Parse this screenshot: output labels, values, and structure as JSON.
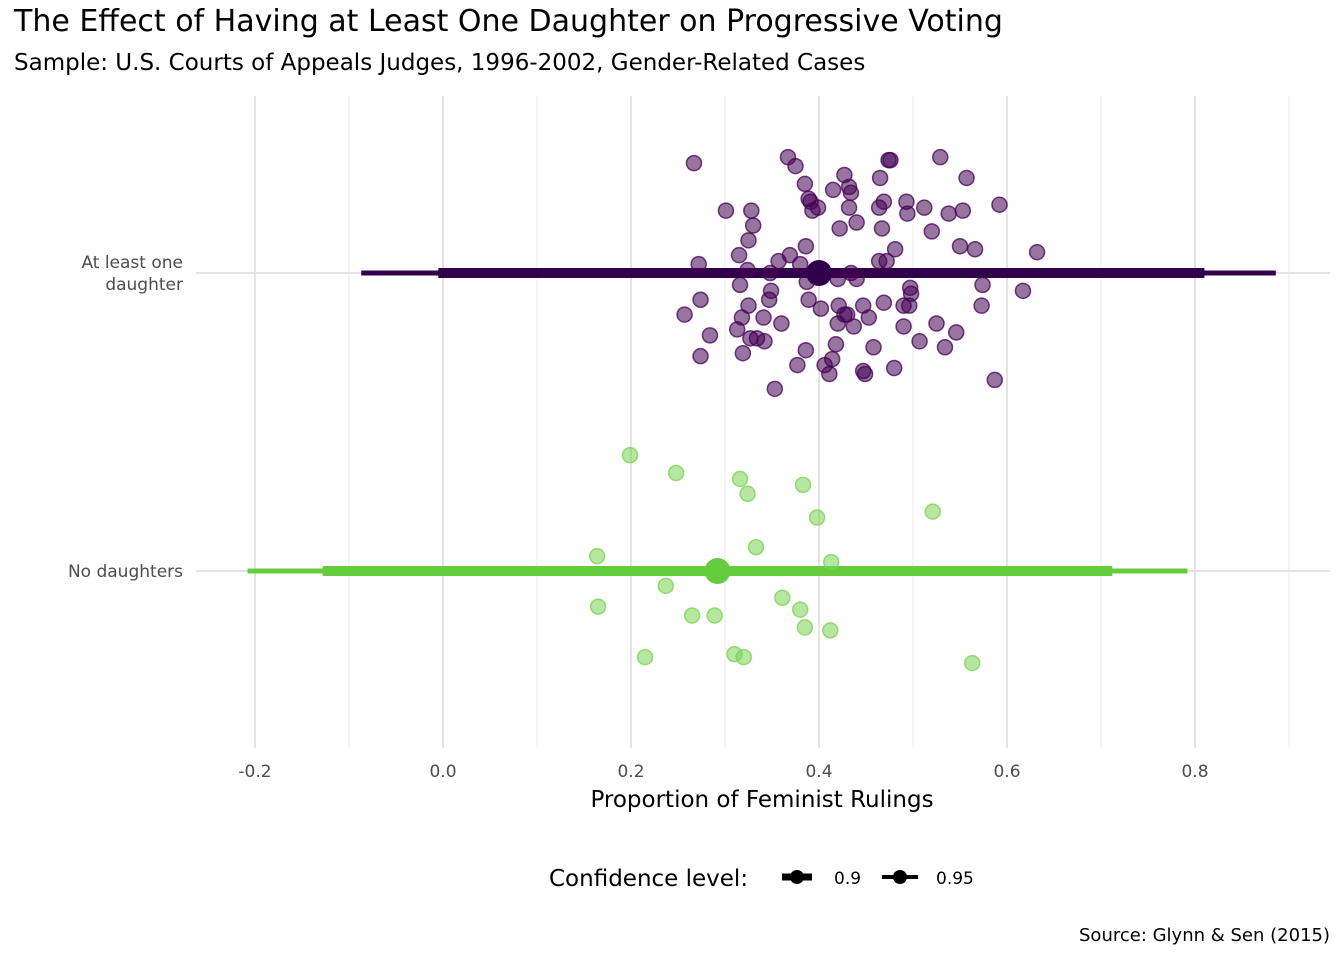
{
  "chart_data": {
    "type": "scatter",
    "title": "The Effect of Having at Least One Daughter on Progressive Voting",
    "subtitle": "Sample: U.S. Courts of Appeals Judges, 1996-2002, Gender-Related Cases",
    "xlabel": "Proportion of Feminist Rulings",
    "ylabel": "",
    "caption": "Source: Glynn & Sen (2015)",
    "xlim": [
      -0.25,
      0.94
    ],
    "x_ticks": [
      -0.2,
      0.0,
      0.2,
      0.4,
      0.6,
      0.8
    ],
    "x_tick_labels": [
      "-0.2",
      "0.0",
      "0.2",
      "0.4",
      "0.6",
      "0.8"
    ],
    "grid": true,
    "legend": {
      "title": "Confidence level:",
      "placement": "bottom",
      "entries": [
        "0.9",
        "0.95"
      ]
    },
    "categories": [
      "At least one daughter",
      "No daughters"
    ],
    "category_label_lines": [
      [
        "At least one",
        "daughter"
      ],
      [
        "No daughters"
      ]
    ],
    "series": [
      {
        "category": "At least one daughter",
        "color": "#440154",
        "summary_color": "#31004a",
        "estimate": 0.4,
        "ci_90": [
          -0.005,
          0.81
        ],
        "ci_95": [
          -0.087,
          0.886
        ],
        "points": [
          [
            0.267,
            0.37
          ],
          [
            0.367,
            0.39
          ],
          [
            0.375,
            0.36
          ],
          [
            0.474,
            0.38
          ],
          [
            0.476,
            0.38
          ],
          [
            0.529,
            0.39
          ],
          [
            0.427,
            0.33
          ],
          [
            0.465,
            0.32
          ],
          [
            0.557,
            0.32
          ],
          [
            0.385,
            0.3
          ],
          [
            0.415,
            0.28
          ],
          [
            0.432,
            0.29
          ],
          [
            0.434,
            0.27
          ],
          [
            0.389,
            0.25
          ],
          [
            0.391,
            0.24
          ],
          [
            0.469,
            0.24
          ],
          [
            0.493,
            0.24
          ],
          [
            0.512,
            0.22
          ],
          [
            0.592,
            0.23
          ],
          [
            0.301,
            0.21
          ],
          [
            0.328,
            0.21
          ],
          [
            0.399,
            0.22
          ],
          [
            0.393,
            0.21
          ],
          [
            0.432,
            0.22
          ],
          [
            0.464,
            0.22
          ],
          [
            0.494,
            0.2
          ],
          [
            0.538,
            0.2
          ],
          [
            0.553,
            0.21
          ],
          [
            0.33,
            0.16
          ],
          [
            0.44,
            0.17
          ],
          [
            0.467,
            0.15
          ],
          [
            0.422,
            0.15
          ],
          [
            0.52,
            0.14
          ],
          [
            0.325,
            0.11
          ],
          [
            0.386,
            0.09
          ],
          [
            0.481,
            0.08
          ],
          [
            0.55,
            0.09
          ],
          [
            0.566,
            0.08
          ],
          [
            0.632,
            0.07
          ],
          [
            0.315,
            0.06
          ],
          [
            0.357,
            0.04
          ],
          [
            0.369,
            0.06
          ],
          [
            0.464,
            0.04
          ],
          [
            0.472,
            0.04
          ],
          [
            0.272,
            0.03
          ],
          [
            0.324,
            0.01
          ],
          [
            0.348,
            0.0
          ],
          [
            0.38,
            0.03
          ],
          [
            0.434,
            0.0
          ],
          [
            0.316,
            -0.04
          ],
          [
            0.349,
            -0.06
          ],
          [
            0.387,
            -0.03
          ],
          [
            0.42,
            -0.02
          ],
          [
            0.44,
            -0.02
          ],
          [
            0.497,
            -0.05
          ],
          [
            0.498,
            -0.07
          ],
          [
            0.574,
            -0.04
          ],
          [
            0.617,
            -0.06
          ],
          [
            0.274,
            -0.09
          ],
          [
            0.325,
            -0.11
          ],
          [
            0.347,
            -0.09
          ],
          [
            0.389,
            -0.09
          ],
          [
            0.402,
            -0.12
          ],
          [
            0.421,
            -0.11
          ],
          [
            0.447,
            -0.11
          ],
          [
            0.469,
            -0.1
          ],
          [
            0.49,
            -0.11
          ],
          [
            0.496,
            -0.11
          ],
          [
            0.573,
            -0.11
          ],
          [
            0.257,
            -0.14
          ],
          [
            0.318,
            -0.15
          ],
          [
            0.341,
            -0.15
          ],
          [
            0.36,
            -0.17
          ],
          [
            0.427,
            -0.14
          ],
          [
            0.43,
            -0.14
          ],
          [
            0.453,
            -0.15
          ],
          [
            0.42,
            -0.17
          ],
          [
            0.437,
            -0.18
          ],
          [
            0.49,
            -0.18
          ],
          [
            0.525,
            -0.17
          ],
          [
            0.546,
            -0.2
          ],
          [
            0.313,
            -0.19
          ],
          [
            0.284,
            -0.21
          ],
          [
            0.327,
            -0.22
          ],
          [
            0.334,
            -0.22
          ],
          [
            0.342,
            -0.23
          ],
          [
            0.319,
            -0.27
          ],
          [
            0.274,
            -0.28
          ],
          [
            0.386,
            -0.26
          ],
          [
            0.418,
            -0.24
          ],
          [
            0.458,
            -0.25
          ],
          [
            0.507,
            -0.23
          ],
          [
            0.534,
            -0.25
          ],
          [
            0.414,
            -0.29
          ],
          [
            0.377,
            -0.31
          ],
          [
            0.406,
            -0.31
          ],
          [
            0.447,
            -0.33
          ],
          [
            0.449,
            -0.34
          ],
          [
            0.48,
            -0.32
          ],
          [
            0.587,
            -0.36
          ],
          [
            0.353,
            -0.39
          ],
          [
            0.411,
            -0.34
          ]
        ]
      },
      {
        "category": "No daughters",
        "color": "#7ad151",
        "summary_color": "#66cc3f",
        "estimate": 0.292,
        "ci_90": [
          -0.128,
          0.712
        ],
        "ci_95": [
          -0.208,
          0.792
        ],
        "points": [
          [
            0.199,
            0.39
          ],
          [
            0.248,
            0.33
          ],
          [
            0.316,
            0.31
          ],
          [
            0.383,
            0.29
          ],
          [
            0.324,
            0.26
          ],
          [
            0.521,
            0.2
          ],
          [
            0.398,
            0.18
          ],
          [
            0.333,
            0.08
          ],
          [
            0.164,
            0.05
          ],
          [
            0.413,
            0.03
          ],
          [
            0.237,
            -0.05
          ],
          [
            0.361,
            -0.09
          ],
          [
            0.165,
            -0.12
          ],
          [
            0.38,
            -0.13
          ],
          [
            0.265,
            -0.15
          ],
          [
            0.289,
            -0.15
          ],
          [
            0.385,
            -0.19
          ],
          [
            0.412,
            -0.2
          ],
          [
            0.215,
            -0.29
          ],
          [
            0.31,
            -0.28
          ],
          [
            0.32,
            -0.29
          ],
          [
            0.563,
            -0.31
          ]
        ]
      }
    ]
  }
}
